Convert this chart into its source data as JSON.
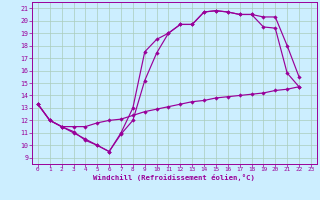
{
  "xlabel": "Windchill (Refroidissement éolien,°C)",
  "bg_color": "#cceeff",
  "line_color": "#990099",
  "grid_color": "#aaccbb",
  "xlim": [
    -0.5,
    23.5
  ],
  "ylim": [
    8.5,
    21.5
  ],
  "xticks": [
    0,
    1,
    2,
    3,
    4,
    5,
    6,
    7,
    8,
    9,
    10,
    11,
    12,
    13,
    14,
    15,
    16,
    17,
    18,
    19,
    20,
    21,
    22,
    23
  ],
  "yticks": [
    9,
    10,
    11,
    12,
    13,
    14,
    15,
    16,
    17,
    18,
    19,
    20,
    21
  ],
  "line1_x": [
    0,
    1,
    2,
    3,
    4,
    5,
    6,
    7,
    8,
    9,
    10,
    11,
    12,
    13,
    14,
    15,
    16,
    17,
    18,
    19,
    20,
    21,
    22
  ],
  "line1_y": [
    13.3,
    12.0,
    11.5,
    11.0,
    10.5,
    10.0,
    9.5,
    11.0,
    13.0,
    17.5,
    18.5,
    19.0,
    19.7,
    19.7,
    20.7,
    20.8,
    20.7,
    20.5,
    20.5,
    20.3,
    20.3,
    18.0,
    15.5
  ],
  "line2_x": [
    0,
    1,
    2,
    3,
    4,
    5,
    6,
    7,
    8,
    9,
    10,
    11,
    12,
    13,
    14,
    15,
    16,
    17,
    18,
    19,
    20,
    21,
    22
  ],
  "line2_y": [
    13.3,
    12.0,
    11.5,
    11.1,
    10.4,
    10.0,
    9.5,
    10.9,
    12.0,
    15.2,
    17.4,
    19.0,
    19.7,
    19.7,
    20.7,
    20.8,
    20.7,
    20.5,
    20.5,
    19.5,
    19.4,
    15.8,
    14.7
  ],
  "line3_x": [
    0,
    1,
    2,
    3,
    4,
    5,
    6,
    7,
    8,
    9,
    10,
    11,
    12,
    13,
    14,
    15,
    16,
    17,
    18,
    19,
    20,
    21,
    22
  ],
  "line3_y": [
    13.3,
    12.0,
    11.5,
    11.5,
    11.5,
    11.8,
    12.0,
    12.1,
    12.4,
    12.7,
    12.9,
    13.1,
    13.3,
    13.5,
    13.6,
    13.8,
    13.9,
    14.0,
    14.1,
    14.2,
    14.4,
    14.5,
    14.7
  ]
}
